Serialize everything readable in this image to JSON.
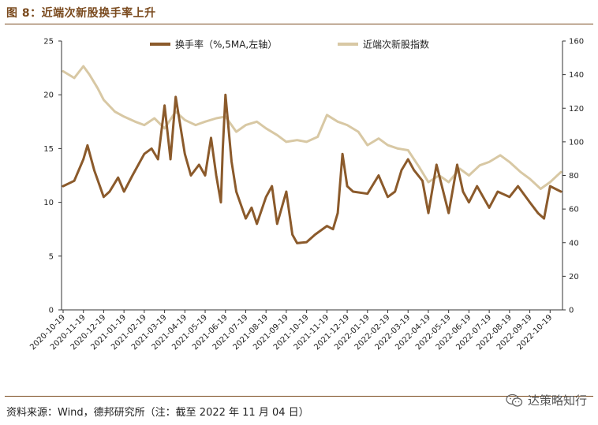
{
  "title": "图 8：近端次新股换手率上升",
  "source": "资料来源：Wind，德邦研究所（注：截至 2022 年 11 月 04 日）",
  "watermark": "达策略知行",
  "colors": {
    "turnover": "#8b5a2b",
    "index": "#d8c8a4",
    "brand": "#7a4a1e"
  },
  "chart_data": {
    "type": "line",
    "title": "",
    "x_tick_labels": [
      "2020-10-19",
      "2020-11-19",
      "2020-12-19",
      "2021-01-19",
      "2021-02-19",
      "2021-03-19",
      "2021-04-19",
      "2021-05-19",
      "2021-06-19",
      "2021-07-19",
      "2021-08-19",
      "2021-09-19",
      "2021-10-19",
      "2021-11-19",
      "2021-12-19",
      "2022-01-19",
      "2022-02-19",
      "2022-03-19",
      "2022-04-19",
      "2022-05-19",
      "2022-06-19",
      "2022-07-19",
      "2022-08-19",
      "2022-09-19",
      "2022-10-19"
    ],
    "y_left": {
      "ticks": [
        0,
        5,
        10,
        15,
        20,
        25
      ],
      "range": [
        0,
        25
      ]
    },
    "y_right": {
      "ticks": [
        0,
        20,
        40,
        60,
        80,
        100,
        120,
        140,
        160
      ],
      "range": [
        0,
        160
      ]
    },
    "legend_position": "top",
    "series": [
      {
        "name": "换手率（%,5MA,左轴）",
        "axis": "left",
        "x": [
          "2020-10-19",
          "2020-11-05",
          "2020-11-19",
          "2020-11-25",
          "2020-12-05",
          "2020-12-19",
          "2020-12-28",
          "2021-01-10",
          "2021-01-19",
          "2021-02-01",
          "2021-02-19",
          "2021-03-01",
          "2021-03-10",
          "2021-03-19",
          "2021-03-28",
          "2021-04-05",
          "2021-04-19",
          "2021-04-28",
          "2021-05-10",
          "2021-05-19",
          "2021-05-28",
          "2021-06-05",
          "2021-06-12",
          "2021-06-15",
          "2021-06-19",
          "2021-06-28",
          "2021-07-05",
          "2021-07-19",
          "2021-07-28",
          "2021-08-05",
          "2021-08-19",
          "2021-08-28",
          "2021-09-05",
          "2021-09-19",
          "2021-09-28",
          "2021-10-05",
          "2021-10-19",
          "2021-11-01",
          "2021-11-19",
          "2021-11-28",
          "2021-12-05",
          "2021-12-12",
          "2021-12-19",
          "2021-12-28",
          "2022-01-19",
          "2022-02-05",
          "2022-02-19",
          "2022-03-01",
          "2022-03-10",
          "2022-03-19",
          "2022-03-28",
          "2022-04-10",
          "2022-04-19",
          "2022-05-01",
          "2022-05-19",
          "2022-06-01",
          "2022-06-10",
          "2022-06-19",
          "2022-07-01",
          "2022-07-19",
          "2022-08-01",
          "2022-08-19",
          "2022-09-01",
          "2022-09-19",
          "2022-10-01",
          "2022-10-10",
          "2022-10-19",
          "2022-11-04"
        ],
        "values": [
          11.5,
          12,
          14,
          15.3,
          13,
          10.5,
          11,
          12.3,
          11,
          12.5,
          14.5,
          15,
          14,
          19,
          14,
          19.8,
          14.5,
          12.5,
          13.5,
          12.5,
          16,
          12.5,
          10,
          15,
          20,
          13.8,
          11,
          8.5,
          9.5,
          8,
          10.5,
          11.5,
          8,
          11,
          7,
          6.2,
          6.3,
          7,
          7.8,
          7.5,
          9,
          14.5,
          11.5,
          11,
          10.8,
          12.5,
          10.5,
          11,
          13,
          14,
          13,
          12,
          9,
          13.5,
          9,
          13.5,
          11,
          10,
          11.5,
          9.5,
          11,
          10.5,
          11.5,
          10,
          9,
          8.5,
          11.5,
          11
        ]
      },
      {
        "name": "近端次新股指数",
        "axis": "right",
        "x": [
          "2020-10-19",
          "2020-11-05",
          "2020-11-19",
          "2020-11-28",
          "2020-12-10",
          "2020-12-19",
          "2021-01-05",
          "2021-01-19",
          "2021-02-05",
          "2021-02-19",
          "2021-03-05",
          "2021-03-19",
          "2021-04-05",
          "2021-04-19",
          "2021-05-05",
          "2021-05-19",
          "2021-06-05",
          "2021-06-19",
          "2021-07-05",
          "2021-07-19",
          "2021-08-05",
          "2021-08-19",
          "2021-09-05",
          "2021-09-19",
          "2021-10-05",
          "2021-10-19",
          "2021-11-05",
          "2021-11-19",
          "2021-12-05",
          "2021-12-19",
          "2022-01-05",
          "2022-01-19",
          "2022-02-05",
          "2022-02-19",
          "2022-03-05",
          "2022-03-19",
          "2022-04-05",
          "2022-04-19",
          "2022-05-05",
          "2022-05-19",
          "2022-06-05",
          "2022-06-19",
          "2022-07-05",
          "2022-07-19",
          "2022-08-05",
          "2022-08-19",
          "2022-09-05",
          "2022-09-19",
          "2022-10-05",
          "2022-10-19",
          "2022-11-04"
        ],
        "values": [
          142,
          138,
          145,
          140,
          132,
          125,
          118,
          115,
          112,
          110,
          114,
          108,
          118,
          113,
          110,
          112,
          114,
          115,
          106,
          110,
          112,
          108,
          104,
          100,
          101,
          100,
          103,
          116,
          112,
          110,
          106,
          98,
          102,
          98,
          96,
          95,
          85,
          76,
          80,
          76,
          84,
          80,
          86,
          88,
          92,
          88,
          82,
          78,
          72,
          76,
          82
        ]
      }
    ]
  }
}
